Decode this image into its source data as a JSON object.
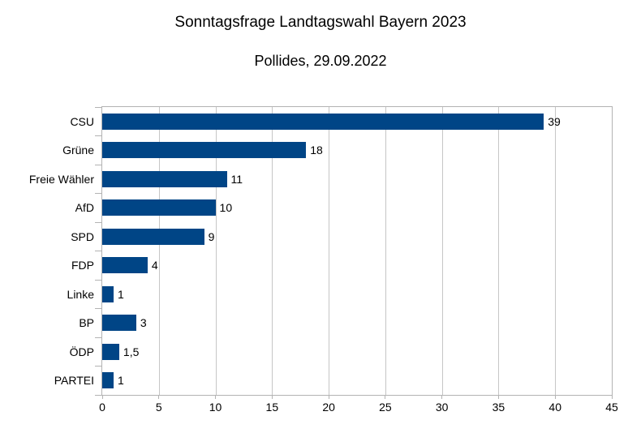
{
  "title": "Sonntagsfrage Landtagswahl Bayern 2023",
  "subtitle": "Pollides, 29.09.2022",
  "chart_data": {
    "type": "bar",
    "orientation": "horizontal",
    "title": "Sonntagsfrage Landtagswahl Bayern 2023",
    "subtitle": "Pollides, 29.09.2022",
    "xlabel": "",
    "ylabel": "",
    "categories": [
      "CSU",
      "Grüne",
      "Freie Wähler",
      "AfD",
      "SPD",
      "FDP",
      "Linke",
      "BP",
      "ÖDP",
      "PARTEI"
    ],
    "values": [
      39,
      18,
      11,
      10,
      9,
      4,
      1,
      3,
      1.5,
      1
    ],
    "value_labels": [
      "39",
      "18",
      "11",
      "10",
      "9",
      "4",
      "1",
      "3",
      "1,5",
      "1"
    ],
    "xlim": [
      0,
      45
    ],
    "x_ticks": [
      0,
      5,
      10,
      15,
      20,
      25,
      30,
      35,
      40,
      45
    ],
    "grid": true,
    "legend": "none",
    "bar_color": "#004586",
    "axis_color": "#b3b3b3",
    "grid_color": "#c6c6c6",
    "text_color": "#000000"
  }
}
